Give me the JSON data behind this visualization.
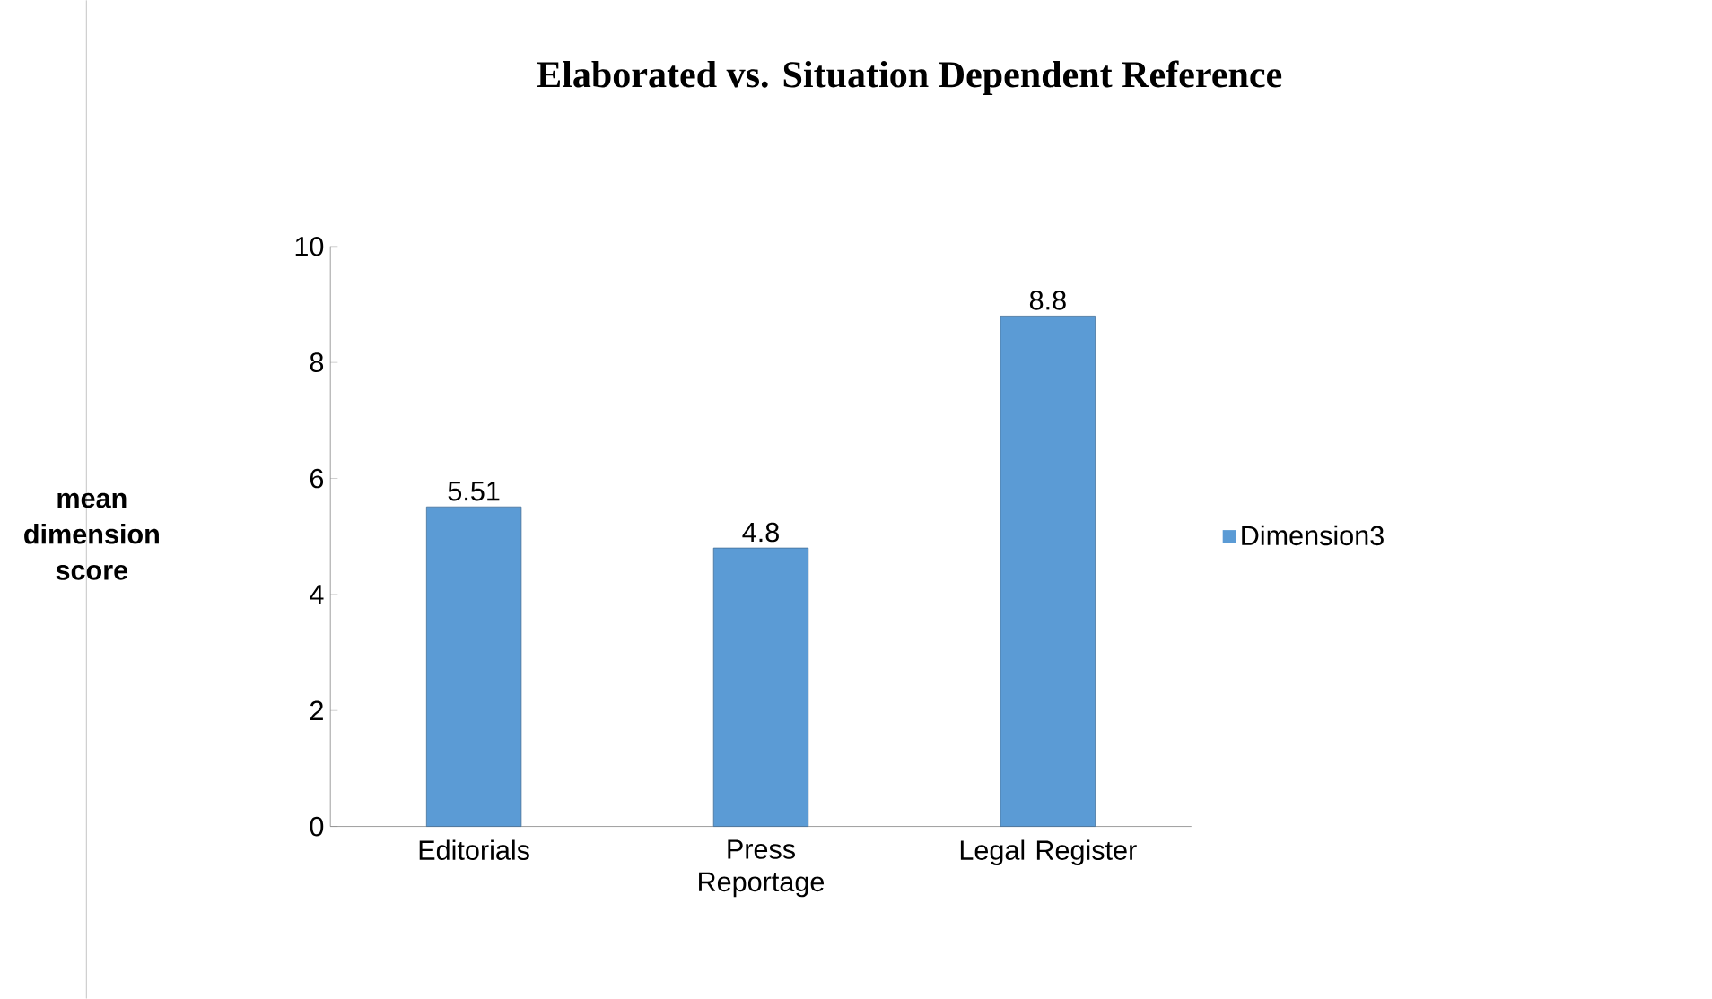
{
  "chart_data": {
    "type": "bar",
    "title": "Elaborated vs. Situation Dependent Reference",
    "ylabel": "mean dimension score",
    "categories": [
      "Editorials",
      "Press Reportage",
      "Legal Register"
    ],
    "series": [
      {
        "name": "Dimension3",
        "color": "#5b9bd5",
        "values": [
          5.51,
          4.8,
          8.8
        ]
      }
    ],
    "ylim": [
      0,
      10
    ],
    "yticks": [
      0,
      2,
      4,
      6,
      8,
      10
    ],
    "grid": false,
    "legend": "right",
    "data_labels": true
  }
}
